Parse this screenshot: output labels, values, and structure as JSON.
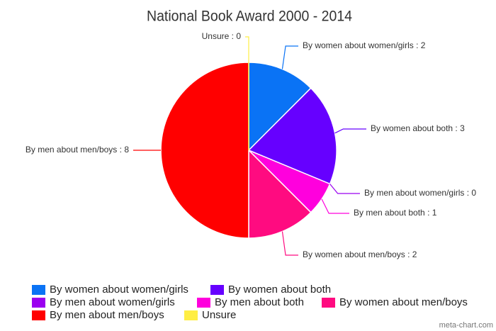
{
  "chart_data": {
    "type": "pie",
    "title": "National Book Award 2000 - 2014",
    "categories": [
      "By women about women/girls",
      "By women about both",
      "By men about women/girls",
      "By men about both",
      "By women about men/boys",
      "By men about men/boys",
      "Unsure"
    ],
    "values": [
      2,
      3,
      0,
      1,
      2,
      8,
      0
    ],
    "value_labels": [
      "By women about women/girls : 2",
      "By women about both : 3",
      "By men about women/girls : 0",
      "By men about both : 1",
      "By women about men/boys : 2",
      "By men about men/boys : 8",
      "Unsure : 0"
    ],
    "colors": [
      "#0a73f5",
      "#6600ff",
      "#9a00f0",
      "#ff00dd",
      "#ff0b80",
      "#ff0000",
      "#ffee44"
    ],
    "source": "meta-chart.com"
  }
}
